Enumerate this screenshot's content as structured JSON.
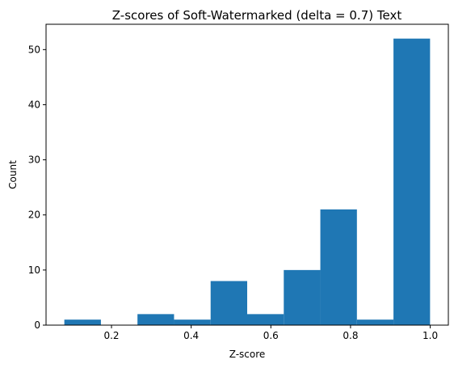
{
  "chart_data": {
    "type": "bar",
    "subtype": "histogram",
    "title": "Z-scores of Soft-Watermarked (delta = 0.7) Text",
    "xlabel": "Z-score",
    "ylabel": "Count",
    "bin_edges": [
      0.0816,
      0.1734,
      0.2652,
      0.357,
      0.4488,
      0.5406,
      0.6324,
      0.7242,
      0.816,
      0.9078,
      0.9996
    ],
    "values": [
      1,
      0,
      2,
      1,
      8,
      2,
      10,
      21,
      1,
      52
    ],
    "xlim": [
      0.0357,
      1.0455
    ],
    "ylim": [
      0,
      54.6
    ],
    "xticks": [
      0.2,
      0.4,
      0.6,
      0.8,
      1.0
    ],
    "xtick_labels": [
      "0.2",
      "0.4",
      "0.6",
      "0.8",
      "1.0"
    ],
    "yticks": [
      0,
      10,
      20,
      30,
      40,
      50
    ],
    "ytick_labels": [
      "0",
      "10",
      "20",
      "30",
      "40",
      "50"
    ],
    "bar_color": "#1f77b4",
    "grid": false,
    "legend": "none"
  }
}
